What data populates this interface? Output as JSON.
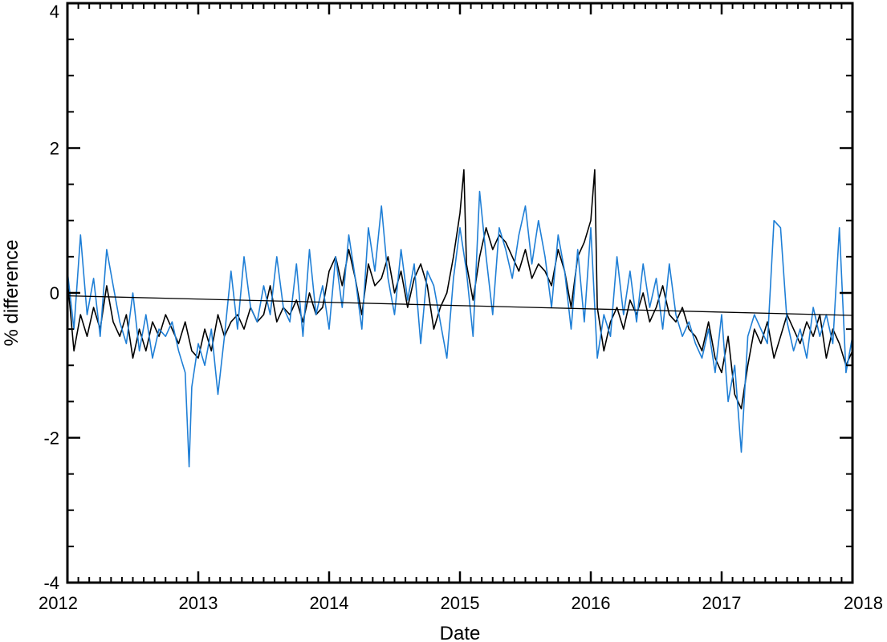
{
  "chart_data": {
    "type": "line",
    "title": "",
    "xlabel": "Date",
    "ylabel": "% difference",
    "xlim": [
      2012,
      2018
    ],
    "ylim": [
      -4,
      4
    ],
    "x_ticks": [
      "2012",
      "2013",
      "2014",
      "2015",
      "2016",
      "2017",
      "2018"
    ],
    "y_ticks": [
      "-4",
      "-2",
      "0",
      "2",
      "4"
    ],
    "grid": false,
    "legend": "none",
    "colors": {
      "black_series": "#000000",
      "blue_series": "#1f7fd6",
      "trend": "#000000"
    },
    "series": [
      {
        "color": "#000000",
        "x": [
          2012.0,
          2012.05,
          2012.1,
          2012.15,
          2012.2,
          2012.25,
          2012.3,
          2012.35,
          2012.4,
          2012.45,
          2012.5,
          2012.55,
          2012.6,
          2012.65,
          2012.7,
          2012.75,
          2012.8,
          2012.85,
          2012.9,
          2012.95,
          2013.0,
          2013.05,
          2013.1,
          2013.15,
          2013.2,
          2013.25,
          2013.3,
          2013.35,
          2013.4,
          2013.45,
          2013.5,
          2013.55,
          2013.6,
          2013.65,
          2013.7,
          2013.75,
          2013.8,
          2013.85,
          2013.9,
          2013.95,
          2014.0,
          2014.05,
          2014.1,
          2014.15,
          2014.2,
          2014.25,
          2014.3,
          2014.35,
          2014.4,
          2014.45,
          2014.5,
          2014.55,
          2014.6,
          2014.65,
          2014.7,
          2014.75,
          2014.8,
          2014.85,
          2014.9,
          2014.95,
          2015.0,
          2015.03,
          2015.05,
          2015.1,
          2015.15,
          2015.2,
          2015.25,
          2015.3,
          2015.35,
          2015.4,
          2015.45,
          2015.5,
          2015.55,
          2015.6,
          2015.65,
          2015.7,
          2015.75,
          2015.8,
          2015.85,
          2015.9,
          2015.95,
          2016.0,
          2016.03,
          2016.05,
          2016.1,
          2016.15,
          2016.2,
          2016.25,
          2016.3,
          2016.35,
          2016.4,
          2016.45,
          2016.5,
          2016.55,
          2016.6,
          2016.65,
          2016.7,
          2016.75,
          2016.8,
          2016.85,
          2016.9,
          2016.95,
          2017.0,
          2017.05,
          2017.1,
          2017.15,
          2017.2,
          2017.25,
          2017.3,
          2017.35,
          2017.4,
          2017.45,
          2017.5,
          2017.55,
          2017.6,
          2017.65,
          2017.7,
          2017.75,
          2017.8,
          2017.85,
          2017.9,
          2017.95,
          2018.0
        ],
        "y": [
          0.2,
          -0.8,
          -0.3,
          -0.6,
          -0.2,
          -0.5,
          0.1,
          -0.4,
          -0.6,
          -0.3,
          -0.9,
          -0.5,
          -0.8,
          -0.4,
          -0.6,
          -0.3,
          -0.5,
          -0.7,
          -0.4,
          -0.8,
          -0.9,
          -0.5,
          -0.8,
          -0.3,
          -0.6,
          -0.4,
          -0.3,
          -0.5,
          -0.2,
          -0.4,
          -0.3,
          0.1,
          -0.4,
          -0.2,
          -0.3,
          -0.1,
          -0.4,
          0.0,
          -0.3,
          -0.2,
          0.3,
          0.5,
          0.1,
          0.6,
          0.2,
          -0.3,
          0.4,
          0.1,
          0.2,
          0.5,
          0.0,
          0.3,
          -0.2,
          0.2,
          0.4,
          0.1,
          -0.5,
          -0.2,
          0.0,
          0.5,
          1.1,
          1.7,
          0.4,
          -0.1,
          0.5,
          0.9,
          0.6,
          0.8,
          0.7,
          0.5,
          0.3,
          0.6,
          0.2,
          0.4,
          0.3,
          0.1,
          0.6,
          0.3,
          -0.2,
          0.5,
          0.7,
          1.0,
          1.7,
          -0.2,
          -0.8,
          -0.4,
          -0.2,
          -0.5,
          -0.1,
          -0.3,
          0.0,
          -0.4,
          -0.2,
          0.1,
          -0.3,
          -0.4,
          -0.2,
          -0.5,
          -0.6,
          -0.8,
          -0.4,
          -0.9,
          -1.1,
          -0.6,
          -1.4,
          -1.6,
          -1.0,
          -0.5,
          -0.7,
          -0.4,
          -0.9,
          -0.6,
          -0.3,
          -0.5,
          -0.7,
          -0.4,
          -0.6,
          -0.3,
          -0.9,
          -0.5,
          -0.7,
          -1.0,
          -0.8
        ]
      },
      {
        "color": "#1f7fd6",
        "x": [
          2012.0,
          2012.05,
          2012.1,
          2012.15,
          2012.2,
          2012.25,
          2012.3,
          2012.35,
          2012.4,
          2012.45,
          2012.5,
          2012.55,
          2012.6,
          2012.65,
          2012.7,
          2012.75,
          2012.8,
          2012.85,
          2012.9,
          2012.93,
          2012.95,
          2013.0,
          2013.05,
          2013.1,
          2013.15,
          2013.2,
          2013.25,
          2013.3,
          2013.35,
          2013.4,
          2013.45,
          2013.5,
          2013.55,
          2013.6,
          2013.65,
          2013.7,
          2013.75,
          2013.8,
          2013.85,
          2013.9,
          2013.95,
          2014.0,
          2014.05,
          2014.1,
          2014.15,
          2014.2,
          2014.25,
          2014.3,
          2014.35,
          2014.4,
          2014.45,
          2014.5,
          2014.55,
          2014.6,
          2014.65,
          2014.7,
          2014.75,
          2014.8,
          2014.85,
          2014.9,
          2014.95,
          2015.0,
          2015.05,
          2015.1,
          2015.15,
          2015.2,
          2015.25,
          2015.3,
          2015.35,
          2015.4,
          2015.45,
          2015.5,
          2015.55,
          2015.6,
          2015.65,
          2015.7,
          2015.75,
          2015.8,
          2015.85,
          2015.9,
          2015.95,
          2016.0,
          2016.05,
          2016.1,
          2016.15,
          2016.2,
          2016.25,
          2016.3,
          2016.35,
          2016.4,
          2016.45,
          2016.5,
          2016.55,
          2016.6,
          2016.65,
          2016.7,
          2016.75,
          2016.8,
          2016.85,
          2016.9,
          2016.95,
          2017.0,
          2017.05,
          2017.1,
          2017.15,
          2017.2,
          2017.25,
          2017.3,
          2017.35,
          2017.4,
          2017.45,
          2017.5,
          2017.55,
          2017.6,
          2017.65,
          2017.7,
          2017.75,
          2017.8,
          2017.85,
          2017.9,
          2017.95,
          2018.0
        ],
        "y": [
          0.3,
          -0.5,
          0.8,
          -0.3,
          0.2,
          -0.6,
          0.6,
          0.1,
          -0.4,
          -0.7,
          0.0,
          -0.8,
          -0.3,
          -0.9,
          -0.5,
          -0.6,
          -0.4,
          -0.8,
          -1.1,
          -2.4,
          -1.3,
          -0.7,
          -1.0,
          -0.5,
          -1.4,
          -0.6,
          0.3,
          -0.5,
          0.5,
          -0.2,
          -0.4,
          0.1,
          -0.3,
          0.5,
          -0.2,
          -0.4,
          0.4,
          -0.6,
          0.6,
          -0.3,
          0.1,
          -0.5,
          0.5,
          -0.2,
          0.8,
          0.2,
          -0.5,
          0.9,
          0.3,
          1.2,
          0.2,
          -0.3,
          0.6,
          -0.1,
          0.4,
          -0.7,
          0.3,
          0.1,
          -0.4,
          -0.9,
          0.2,
          0.9,
          0.3,
          -0.6,
          1.4,
          0.5,
          -0.3,
          0.9,
          0.6,
          0.2,
          0.8,
          1.2,
          0.4,
          1.0,
          0.5,
          -0.2,
          0.8,
          0.3,
          -0.5,
          0.6,
          -0.4,
          0.9,
          -0.9,
          -0.3,
          -0.6,
          0.5,
          -0.3,
          0.3,
          -0.4,
          0.4,
          -0.2,
          0.2,
          -0.5,
          0.4,
          -0.3,
          -0.6,
          -0.4,
          -0.7,
          -0.9,
          -0.5,
          -1.1,
          -0.3,
          -1.5,
          -1.0,
          -2.2,
          -0.6,
          -0.3,
          -0.5,
          -0.7,
          1.0,
          0.9,
          -0.4,
          -0.8,
          -0.5,
          -0.9,
          -0.2,
          -0.6,
          -0.3,
          -0.7,
          0.9,
          -1.1,
          -0.6
        ]
      },
      {
        "color": "#000000",
        "x": [
          2012.0,
          2018.0
        ],
        "y": [
          -0.04,
          -0.31
        ]
      }
    ]
  }
}
